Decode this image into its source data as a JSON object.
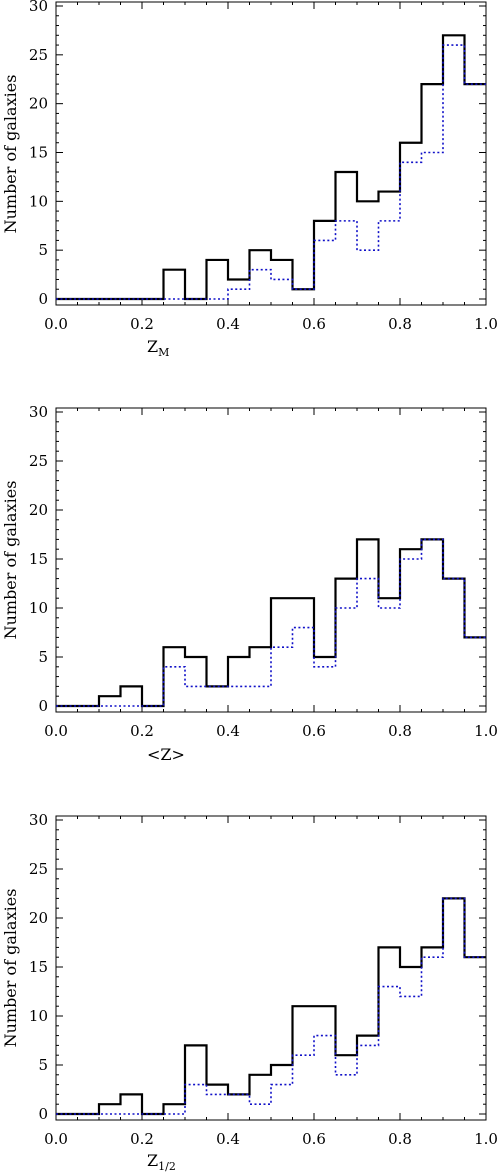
{
  "colors": {
    "solid": "#000000",
    "dotted": "#1010c8"
  },
  "chart_data": [
    {
      "type": "histogram",
      "xlim": [
        0.0,
        1.0
      ],
      "ylim": [
        0,
        30
      ],
      "xticks": [
        "0.0",
        "0.2",
        "0.4",
        "0.6",
        "0.8",
        "1.0"
      ],
      "yticks": [
        "0",
        "5",
        "10",
        "15",
        "20",
        "25",
        "30"
      ],
      "ylabel": "Number of galaxies",
      "xlabel_main": "Z",
      "xlabel_sub": "M",
      "bin_edges": [
        0.0,
        0.05,
        0.1,
        0.15,
        0.2,
        0.25,
        0.3,
        0.35,
        0.4,
        0.45,
        0.5,
        0.55,
        0.6,
        0.65,
        0.7,
        0.75,
        0.8,
        0.85,
        0.9,
        0.95,
        1.0
      ],
      "series": [
        {
          "style": "solid",
          "values": [
            0,
            0,
            0,
            0,
            0,
            3,
            0,
            4,
            2,
            5,
            4,
            1,
            8,
            13,
            10,
            11,
            16,
            22,
            27,
            22
          ]
        },
        {
          "style": "dotted",
          "values": [
            0,
            0,
            0,
            0,
            0,
            0,
            0,
            0,
            1,
            3,
            2,
            1,
            6,
            8,
            5,
            8,
            14,
            15,
            26,
            22
          ]
        }
      ]
    },
    {
      "type": "histogram",
      "xlim": [
        0.0,
        1.0
      ],
      "ylim": [
        0,
        30
      ],
      "xticks": [
        "0.0",
        "0.2",
        "0.4",
        "0.6",
        "0.8",
        "1.0"
      ],
      "yticks": [
        "0",
        "5",
        "10",
        "15",
        "20",
        "25",
        "30"
      ],
      "ylabel": "Number of galaxies",
      "xlabel_main": "<Z>",
      "xlabel_sub": "",
      "bin_edges": [
        0.0,
        0.05,
        0.1,
        0.15,
        0.2,
        0.25,
        0.3,
        0.35,
        0.4,
        0.45,
        0.5,
        0.55,
        0.6,
        0.65,
        0.7,
        0.75,
        0.8,
        0.85,
        0.9,
        0.95,
        1.0
      ],
      "series": [
        {
          "style": "solid",
          "values": [
            0,
            0,
            1,
            2,
            0,
            6,
            5,
            2,
            5,
            6,
            11,
            11,
            5,
            13,
            17,
            11,
            16,
            17,
            13,
            7
          ]
        },
        {
          "style": "dotted",
          "values": [
            0,
            0,
            0,
            0,
            0,
            4,
            2,
            2,
            2,
            2,
            6,
            8,
            4,
            10,
            13,
            10,
            15,
            17,
            13,
            7
          ]
        }
      ]
    },
    {
      "type": "histogram",
      "xlim": [
        0.0,
        1.0
      ],
      "ylim": [
        0,
        30
      ],
      "xticks": [
        "0.0",
        "0.2",
        "0.4",
        "0.6",
        "0.8",
        "1.0"
      ],
      "yticks": [
        "0",
        "5",
        "10",
        "15",
        "20",
        "25",
        "30"
      ],
      "ylabel": "Number of galaxies",
      "xlabel_main": "Z",
      "xlabel_sub": "1/2",
      "bin_edges": [
        0.0,
        0.05,
        0.1,
        0.15,
        0.2,
        0.25,
        0.3,
        0.35,
        0.4,
        0.45,
        0.5,
        0.55,
        0.6,
        0.65,
        0.7,
        0.75,
        0.8,
        0.85,
        0.9,
        0.95,
        1.0
      ],
      "series": [
        {
          "style": "solid",
          "values": [
            0,
            0,
            1,
            2,
            0,
            1,
            7,
            3,
            2,
            4,
            5,
            11,
            11,
            6,
            8,
            17,
            15,
            17,
            22,
            16
          ]
        },
        {
          "style": "dotted",
          "values": [
            0,
            0,
            0,
            0,
            0,
            0,
            3,
            2,
            2,
            1,
            3,
            6,
            8,
            4,
            7,
            13,
            12,
            16,
            22,
            16
          ]
        }
      ]
    }
  ]
}
